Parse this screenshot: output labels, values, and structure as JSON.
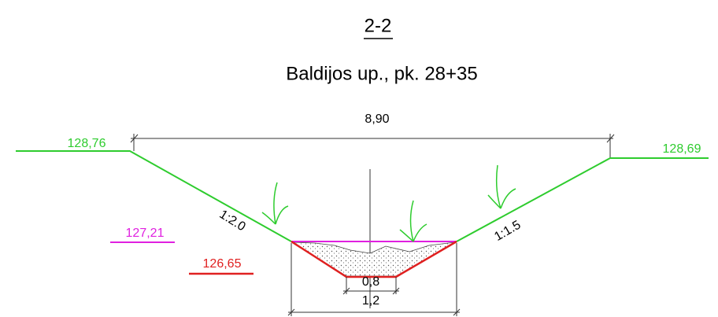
{
  "title": "2-2",
  "subtitle": "Baldijos up., pk. 28+35",
  "dimensions": {
    "top_width": "8,90",
    "bottom_width": "0,8",
    "channel_width": "1,2"
  },
  "levels": {
    "left_bank": "128,76",
    "right_bank": "128,69",
    "water": "127,21",
    "bottom": "126,65"
  },
  "slopes": {
    "left": "1:2.0",
    "right": "1:1.5"
  }
}
